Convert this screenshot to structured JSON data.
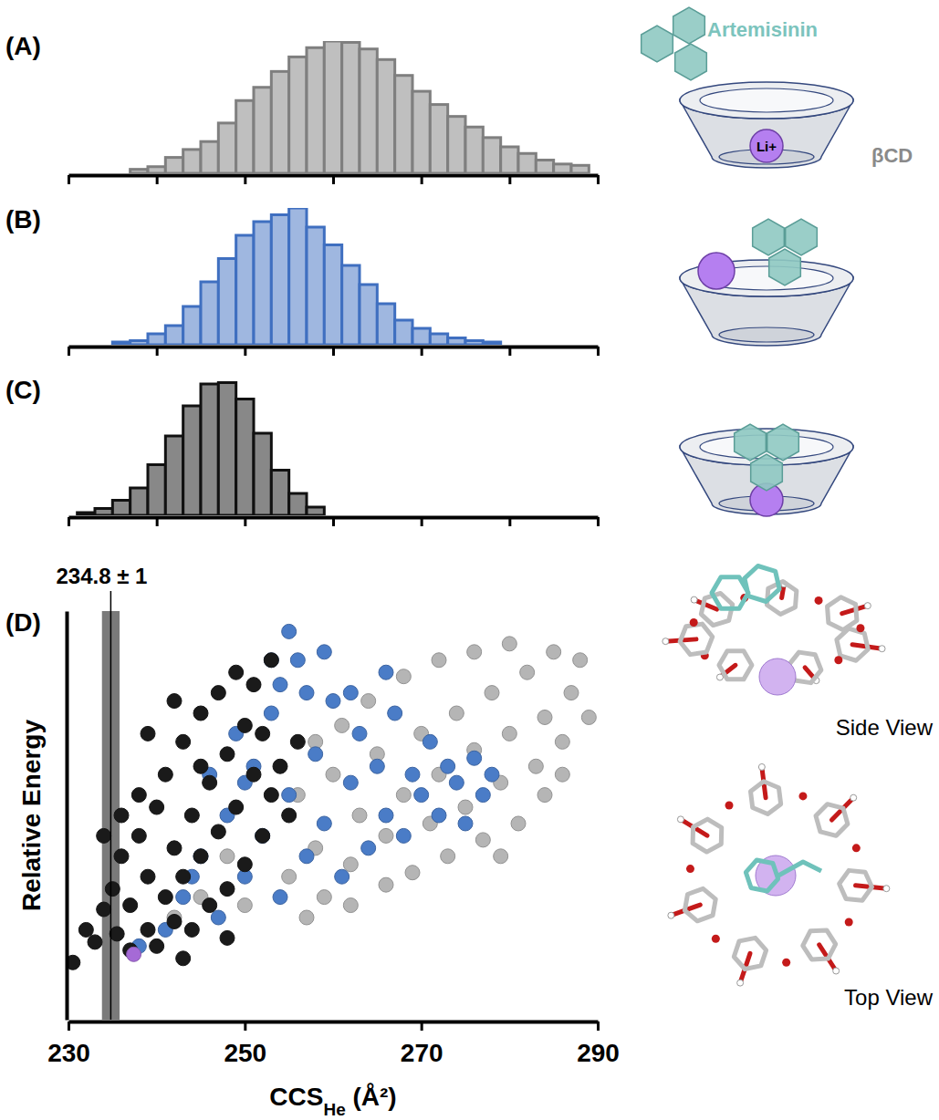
{
  "chart_data": [
    {
      "panel": "(A)",
      "type": "histogram",
      "color": "#7f7f7f",
      "bins": [
        237,
        239,
        241,
        243,
        245,
        247,
        249,
        251,
        253,
        255,
        257,
        259,
        261,
        263,
        265,
        267,
        269,
        271,
        273,
        275,
        277,
        279,
        281,
        283,
        285,
        287,
        289
      ],
      "values": [
        3,
        5,
        12,
        18,
        24,
        38,
        55,
        65,
        77,
        88,
        95,
        100,
        99,
        94,
        86,
        74,
        62,
        52,
        43,
        35,
        27,
        20,
        15,
        10,
        7,
        6
      ],
      "xlim": [
        230,
        290
      ],
      "xticks": [
        230,
        240,
        250,
        260,
        270,
        280,
        290
      ],
      "ylim": [
        0,
        100
      ],
      "tick_labels": false,
      "annotations": [
        "Artemisinin",
        "Li+",
        "βCD"
      ]
    },
    {
      "panel": "(B)",
      "type": "histogram",
      "color": "#3f6fc0",
      "bins": [
        235,
        237,
        239,
        241,
        243,
        245,
        247,
        249,
        251,
        253,
        255,
        257,
        259,
        261,
        263,
        265,
        267,
        269,
        271,
        273,
        275,
        277,
        279
      ],
      "values": [
        2,
        3,
        8,
        14,
        28,
        46,
        63,
        80,
        90,
        95,
        100,
        86,
        73,
        58,
        44,
        30,
        18,
        12,
        8,
        5,
        3,
        2
      ],
      "xlim": [
        230,
        290
      ],
      "xticks": [
        230,
        240,
        250,
        260,
        270,
        280,
        290
      ],
      "ylim": [
        0,
        100
      ],
      "tick_labels": false
    },
    {
      "panel": "(C)",
      "type": "histogram",
      "color": "#111111",
      "bins": [
        231,
        233,
        235,
        237,
        239,
        241,
        243,
        245,
        247,
        249,
        251,
        253,
        255,
        257,
        259
      ],
      "values": [
        2,
        5,
        11,
        20,
        37,
        58,
        80,
        96,
        97,
        85,
        60,
        33,
        16,
        6
      ],
      "xlim": [
        230,
        290
      ],
      "xticks": [
        230,
        240,
        250,
        260,
        270,
        280,
        290
      ],
      "ylim": [
        0,
        100
      ],
      "tick_labels": false
    },
    {
      "panel": "(D)",
      "type": "scatter",
      "marker": "circle",
      "x_label": [
        "CCS",
        "He",
        " (Å²)"
      ],
      "y_label": "Relative Energy",
      "xlim": [
        230,
        290
      ],
      "xticks": [
        230,
        250,
        270,
        290
      ],
      "ylim": [
        0,
        100
      ],
      "yticks": [],
      "tick_labels": "x",
      "reference": {
        "x": 234.8,
        "error": 1,
        "label": "234.8 ± 1"
      },
      "annotations": [
        "Side View",
        "Top View"
      ],
      "series": [
        {
          "color": "#b5b5b5",
          "x": [
            242,
            245,
            248,
            250,
            252,
            255,
            256,
            258,
            260,
            262,
            263,
            265,
            266,
            268,
            270,
            271,
            272,
            274,
            275,
            276,
            278,
            279,
            280,
            282,
            283,
            284,
            285,
            286,
            287,
            288,
            289,
            284,
            281,
            277,
            273,
            269,
            266,
            262,
            259,
            257,
            264,
            268,
            272,
            276,
            280,
            261,
            258,
            286,
            279
          ],
          "values": [
            25,
            30,
            40,
            28,
            45,
            35,
            55,
            42,
            60,
            38,
            50,
            65,
            45,
            55,
            70,
            48,
            60,
            75,
            52,
            66,
            80,
            58,
            70,
            85,
            62,
            74,
            90,
            68,
            80,
            88,
            74,
            55,
            48,
            44,
            40,
            36,
            33,
            28,
            30,
            25,
            78,
            84,
            88,
            90,
            92,
            72,
            68,
            60,
            40
          ]
        },
        {
          "color": "#4a7cc7",
          "x": [
            238,
            241,
            243,
            245,
            247,
            248,
            250,
            251,
            252,
            253,
            254,
            255,
            256,
            257,
            258,
            259,
            260,
            261,
            262,
            263,
            264,
            265,
            266,
            267,
            268,
            269,
            270,
            271,
            272,
            273,
            274,
            275,
            276,
            277,
            278,
            255,
            254,
            257,
            259,
            246,
            249,
            253,
            262,
            266,
            244,
            250
          ],
          "values": [
            18,
            22,
            30,
            40,
            25,
            50,
            35,
            62,
            45,
            75,
            30,
            55,
            88,
            40,
            65,
            48,
            78,
            35,
            58,
            70,
            42,
            62,
            50,
            75,
            45,
            60,
            55,
            68,
            50,
            62,
            58,
            48,
            64,
            55,
            60,
            95,
            82,
            80,
            90,
            60,
            70,
            88,
            80,
            85,
            35,
            58
          ]
        },
        {
          "color": "#1a1a1a",
          "x": [
            230.5,
            232,
            233,
            234,
            235,
            235.5,
            236,
            237,
            237,
            238,
            239,
            239,
            240,
            240,
            241,
            241,
            242,
            242,
            243,
            243,
            244,
            244,
            245,
            245,
            246,
            246,
            247,
            247,
            248,
            248,
            249,
            249,
            250,
            250,
            251,
            251,
            252,
            252,
            253,
            253,
            254,
            255,
            256,
            245,
            238,
            236,
            234,
            239,
            242,
            248,
            243
          ],
          "values": [
            14,
            22,
            19,
            27,
            32,
            21,
            40,
            17,
            28,
            45,
            22,
            35,
            52,
            18,
            30,
            60,
            42,
            24,
            68,
            35,
            50,
            22,
            75,
            40,
            58,
            28,
            80,
            46,
            65,
            32,
            85,
            52,
            72,
            38,
            60,
            82,
            45,
            70,
            55,
            88,
            62,
            50,
            68,
            62,
            55,
            50,
            45,
            70,
            78,
            20,
            15
          ]
        },
        {
          "color": "#a56ad6",
          "x": [
            237.4
          ],
          "values": [
            16
          ]
        }
      ]
    }
  ]
}
